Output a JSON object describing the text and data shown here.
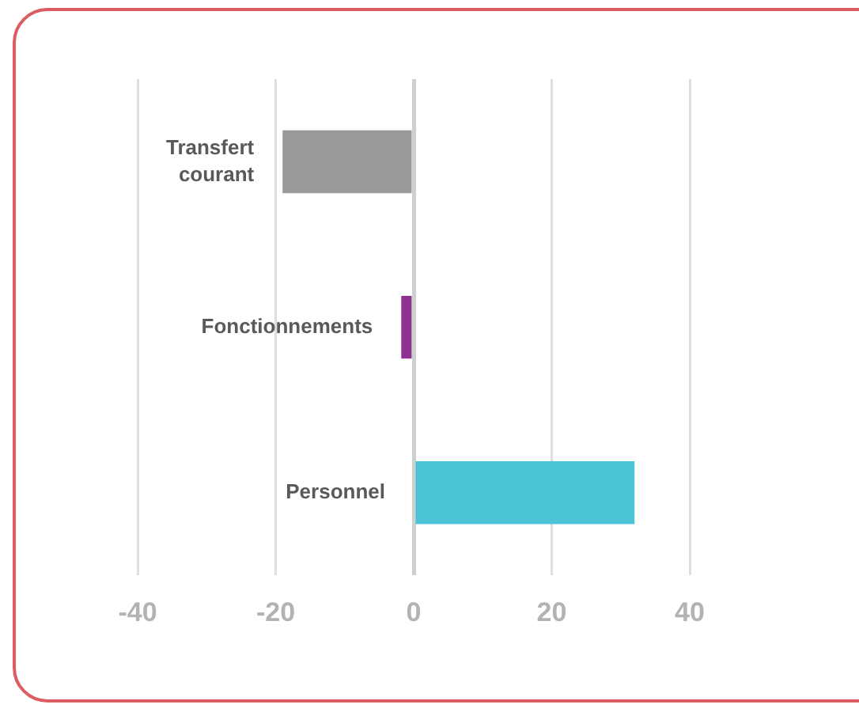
{
  "chart_data": {
    "type": "bar",
    "orientation": "horizontal",
    "categories": [
      "Transfert courant",
      "Fonctionnements",
      "Personnel"
    ],
    "values": [
      -19,
      -1.8,
      32
    ],
    "colors": [
      "#9a9a9b",
      "#8e3290",
      "#4cc4d8"
    ],
    "xlim": [
      -40,
      40
    ],
    "xticks": [
      -40,
      -20,
      0,
      20,
      40
    ],
    "grid": "x",
    "legend": false
  }
}
